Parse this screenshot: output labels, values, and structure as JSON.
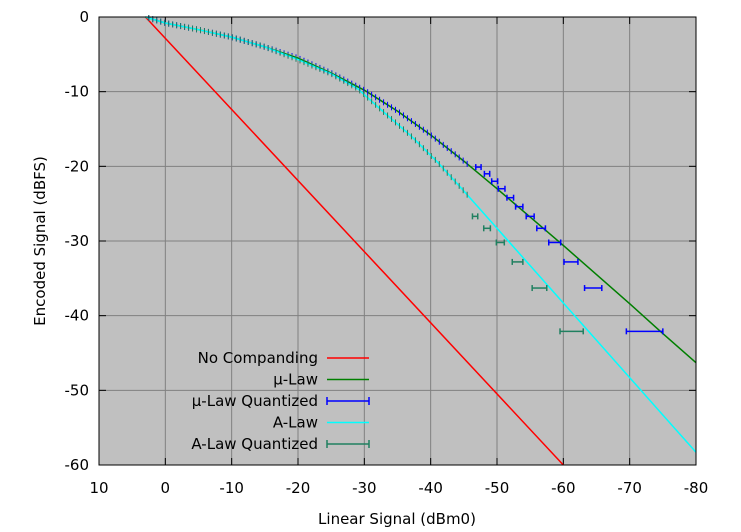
{
  "chart_data": {
    "type": "line",
    "title": "",
    "xlabel": "Linear  Signal (dBm0)",
    "ylabel": "Encoded Signal (dBFS)",
    "xlim": [
      10,
      -80
    ],
    "ylim": [
      -60,
      0
    ],
    "x_ticks": [
      10,
      0,
      -10,
      -20,
      -30,
      -40,
      -50,
      -60,
      -70,
      -80
    ],
    "x_tick_labels": [
      "10",
      "0",
      "-10",
      "-20",
      "-30",
      "-40",
      "-50",
      "-60",
      "-70",
      "-80"
    ],
    "y_ticks": [
      0,
      -10,
      -20,
      -30,
      -40,
      -50,
      -60
    ],
    "y_tick_labels": [
      "0",
      "-10",
      "-20",
      "-30",
      "-40",
      "-50",
      "-60"
    ],
    "grid": true,
    "background_color": "#c0c0c0",
    "legend_position": "bottom-left",
    "series": [
      {
        "name": "No Companding",
        "color": "#ff0000",
        "kind": "line",
        "x": [
          3.0,
          -60.0
        ],
        "y": [
          0.0,
          -60.0
        ]
      },
      {
        "name": "µ-Law",
        "color": "#007f00",
        "kind": "line",
        "x": [
          3.0,
          0,
          -5,
          -10,
          -15,
          -20,
          -25,
          -30,
          -35,
          -40,
          -45,
          -50,
          -55,
          -60,
          -65,
          -70,
          -75,
          -80
        ],
        "y": [
          0.0,
          -0.8,
          -1.7,
          -2.7,
          -4.0,
          -5.5,
          -7.5,
          -9.8,
          -12.6,
          -15.8,
          -19.3,
          -23.0,
          -26.8,
          -30.6,
          -34.5,
          -38.4,
          -42.4,
          -46.3
        ]
      },
      {
        "name": "µ-Law Quantized",
        "color": "#0000ff",
        "kind": "errorbar",
        "y": [
          -20.1,
          -21.0,
          -22.0,
          -23.0,
          -24.2,
          -25.4,
          -26.7,
          -28.3,
          -30.2,
          -32.8,
          -36.3,
          -42.1
        ],
        "x_low": [
          -46.8,
          -48.1,
          -49.2,
          -50.2,
          -51.5,
          -52.8,
          -54.4,
          -56.0,
          -57.8,
          -60.1,
          -63.2,
          -69.5
        ],
        "x_high": [
          -47.6,
          -48.9,
          -50.1,
          -51.2,
          -52.5,
          -53.9,
          -55.6,
          -57.3,
          -59.6,
          -62.2,
          -65.8,
          -75.0
        ]
      },
      {
        "name": "A-Law",
        "color": "#00ffff",
        "kind": "line",
        "x": [
          3.0,
          0,
          -5,
          -10,
          -15,
          -20,
          -25,
          -29,
          -33,
          -37,
          -41,
          -45,
          -50,
          -55,
          -60,
          -65,
          -70,
          -75,
          -80
        ],
        "y": [
          0.0,
          -0.8,
          -1.7,
          -2.7,
          -4.0,
          -5.7,
          -7.6,
          -9.6,
          -12.8,
          -15.9,
          -19.4,
          -23.3,
          -28.3,
          -33.3,
          -38.3,
          -43.3,
          -48.3,
          -53.3,
          -58.3
        ]
      },
      {
        "name": "A-Law Quantized",
        "color": "#208060",
        "kind": "errorbar",
        "y": [
          -26.7,
          -28.3,
          -30.2,
          -32.8,
          -36.3,
          -42.1
        ],
        "x_low": [
          -46.3,
          -48.0,
          -49.9,
          -52.3,
          -55.3,
          -59.5
        ],
        "x_high": [
          -47.1,
          -49.0,
          -51.1,
          -53.9,
          -57.5,
          -63.0
        ]
      }
    ]
  }
}
